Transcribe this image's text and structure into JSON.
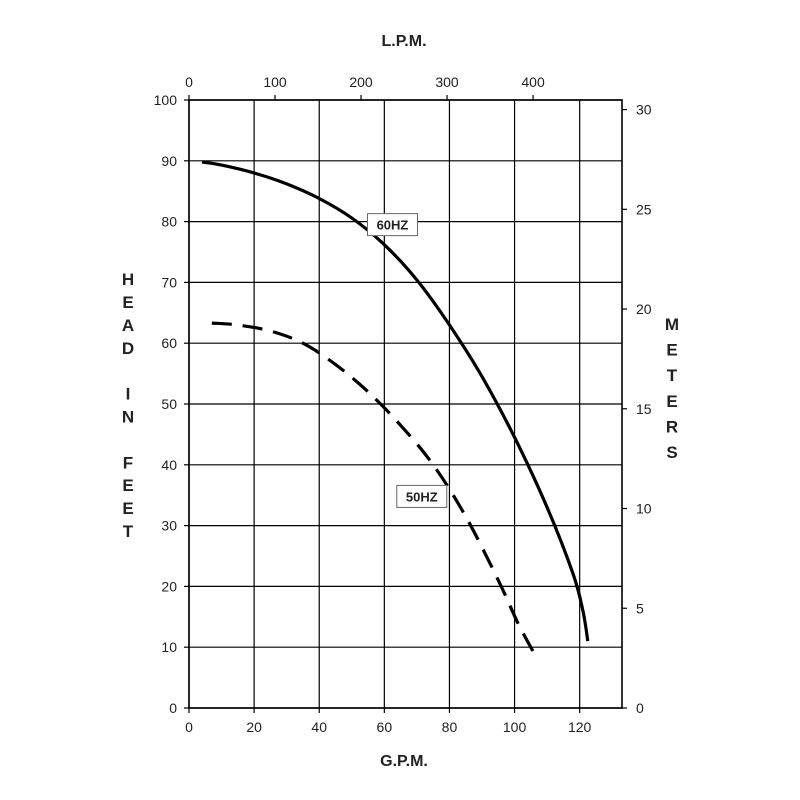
{
  "chart_data": {
    "type": "line",
    "xlabel": "G.P.M.",
    "x2label": "L.P.M.",
    "ylabel": "HEAD IN FEET",
    "y2label": "METERS",
    "xlim": [
      0,
      133
    ],
    "ylim": [
      0,
      100
    ],
    "x_ticks": [
      0,
      20,
      40,
      60,
      80,
      100,
      120
    ],
    "y_ticks": [
      0,
      10,
      20,
      30,
      40,
      50,
      60,
      70,
      80,
      90,
      100
    ],
    "x2_ticks": [
      0,
      100,
      200,
      300,
      400
    ],
    "y2_ticks": [
      0,
      5,
      10,
      15,
      20,
      25,
      30
    ],
    "grid": true,
    "series": [
      {
        "name": "60HZ",
        "style": "solid",
        "x": [
          4,
          10,
          20,
          30,
          40,
          50,
          60,
          70,
          80,
          90,
          100,
          110,
          118,
          121,
          122.5
        ],
        "y": [
          89.8,
          89.3,
          88,
          86.2,
          83.8,
          80.6,
          76.2,
          70.4,
          63,
          54.5,
          44.5,
          33,
          22,
          16,
          11
        ]
      },
      {
        "name": "50HZ",
        "style": "dashed",
        "x": [
          7,
          15,
          25,
          35,
          45,
          55,
          65,
          75,
          85,
          95,
          101,
          106
        ],
        "y": [
          63.3,
          63,
          62,
          60,
          56.5,
          52,
          46.5,
          40,
          31.5,
          21,
          14,
          9
        ]
      }
    ]
  }
}
